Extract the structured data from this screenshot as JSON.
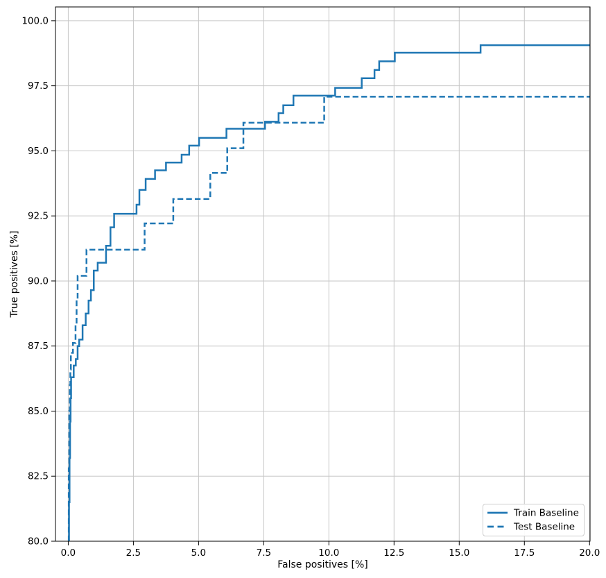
{
  "chart_data": {
    "type": "line",
    "subtype": "step-roc",
    "title": "",
    "xlabel": "False positives [%]",
    "ylabel": "True positives [%]",
    "xlim": [
      -0.49,
      20.02
    ],
    "ylim": [
      80,
      100.53
    ],
    "grid": true,
    "xticks": {
      "values": [
        0,
        2.5,
        5,
        7.5,
        10,
        12.5,
        15,
        17.5,
        20
      ],
      "labels": [
        "0.0",
        "2.5",
        "5.0",
        "7.5",
        "10.0",
        "12.5",
        "15.0",
        "17.5",
        "20.0"
      ]
    },
    "yticks": {
      "values": [
        80,
        82.5,
        85,
        87.5,
        90,
        92.5,
        95,
        97.5,
        100
      ],
      "labels": [
        "80.0",
        "82.5",
        "85.0",
        "87.5",
        "90.0",
        "92.5",
        "95.0",
        "97.5",
        "100.0"
      ]
    },
    "legend": {
      "position": "lower-right",
      "entries": [
        {
          "label": "Train Baseline",
          "style": "solid"
        },
        {
          "label": "Test Baseline",
          "style": "dashed"
        }
      ]
    },
    "series": [
      {
        "name": "Test Baseline",
        "style": "dashed",
        "color": "#1f77b4",
        "line_width": 2.5,
        "start_y": 80,
        "end_x": 20.02,
        "steps": [
          [
            0.02,
            82.8
          ],
          [
            0.04,
            85.0
          ],
          [
            0.06,
            86.0
          ],
          [
            0.08,
            86.6
          ],
          [
            0.1,
            87.24
          ],
          [
            0.18,
            87.62
          ],
          [
            0.28,
            88.3
          ],
          [
            0.32,
            89.3
          ],
          [
            0.36,
            90.2
          ],
          [
            0.7,
            91.2
          ],
          [
            2.93,
            92.21
          ],
          [
            4.03,
            93.15
          ],
          [
            5.45,
            94.15
          ],
          [
            6.1,
            95.1
          ],
          [
            6.72,
            96.08
          ],
          [
            9.82,
            97.08
          ]
        ]
      },
      {
        "name": "Train Baseline",
        "style": "solid",
        "color": "#1f77b4",
        "line_width": 2.5,
        "start_y": 80,
        "end_x": 20.02,
        "steps": [
          [
            0.03,
            81.5
          ],
          [
            0.05,
            83.2
          ],
          [
            0.07,
            84.6
          ],
          [
            0.09,
            85.5
          ],
          [
            0.11,
            86.3
          ],
          [
            0.21,
            86.75
          ],
          [
            0.29,
            87.0
          ],
          [
            0.36,
            87.5
          ],
          [
            0.42,
            87.75
          ],
          [
            0.55,
            88.3
          ],
          [
            0.67,
            88.75
          ],
          [
            0.78,
            89.25
          ],
          [
            0.87,
            89.65
          ],
          [
            0.98,
            90.4
          ],
          [
            1.13,
            90.7
          ],
          [
            1.45,
            91.35
          ],
          [
            1.62,
            92.06
          ],
          [
            1.76,
            92.58
          ],
          [
            2.62,
            92.93
          ],
          [
            2.73,
            93.5
          ],
          [
            2.97,
            93.92
          ],
          [
            3.33,
            94.25
          ],
          [
            3.75,
            94.55
          ],
          [
            4.35,
            94.85
          ],
          [
            4.64,
            95.2
          ],
          [
            5.02,
            95.5
          ],
          [
            6.07,
            95.85
          ],
          [
            7.55,
            96.12
          ],
          [
            8.07,
            96.45
          ],
          [
            8.25,
            96.75
          ],
          [
            8.64,
            97.12
          ],
          [
            10.24,
            97.42
          ],
          [
            11.26,
            97.79
          ],
          [
            11.75,
            98.11
          ],
          [
            11.93,
            98.44
          ],
          [
            12.53,
            98.77
          ],
          [
            15.82,
            99.06
          ]
        ]
      }
    ],
    "colors": {
      "line": "#1f77b4",
      "background": "#ffffff",
      "grid": "#c6c6c6",
      "spine": "#000000",
      "text": "#000000",
      "legend_border": "#cccccc",
      "legend_bg": "#ffffff"
    }
  }
}
